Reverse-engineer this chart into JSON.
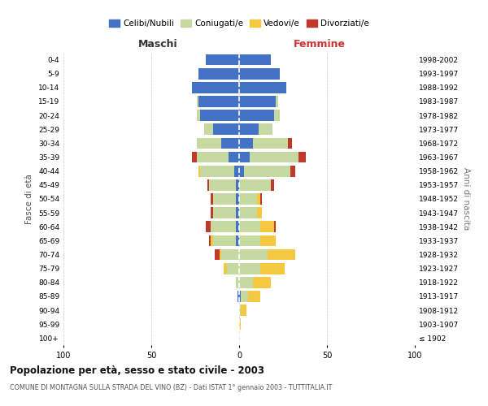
{
  "age_groups": [
    "100+",
    "95-99",
    "90-94",
    "85-89",
    "80-84",
    "75-79",
    "70-74",
    "65-69",
    "60-64",
    "55-59",
    "50-54",
    "45-49",
    "40-44",
    "35-39",
    "30-34",
    "25-29",
    "20-24",
    "15-19",
    "10-14",
    "5-9",
    "0-4"
  ],
  "birth_years": [
    "≤ 1902",
    "1903-1907",
    "1908-1912",
    "1913-1917",
    "1918-1922",
    "1923-1927",
    "1928-1932",
    "1933-1937",
    "1938-1942",
    "1943-1947",
    "1948-1952",
    "1953-1957",
    "1958-1962",
    "1963-1967",
    "1968-1972",
    "1973-1977",
    "1978-1982",
    "1983-1987",
    "1988-1992",
    "1993-1997",
    "1998-2002"
  ],
  "maschi": {
    "celibe": [
      0,
      0,
      0,
      1,
      0,
      0,
      0,
      2,
      2,
      2,
      2,
      2,
      3,
      6,
      10,
      15,
      22,
      23,
      27,
      23,
      19
    ],
    "coniugato": [
      0,
      0,
      0,
      0,
      2,
      7,
      10,
      13,
      14,
      13,
      13,
      15,
      19,
      18,
      14,
      5,
      2,
      1,
      0,
      0,
      0
    ],
    "vedovo": [
      0,
      0,
      0,
      0,
      0,
      2,
      1,
      1,
      0,
      0,
      0,
      0,
      1,
      0,
      0,
      0,
      0,
      0,
      0,
      0,
      0
    ],
    "divorziato": [
      0,
      0,
      0,
      0,
      0,
      0,
      3,
      1,
      3,
      1,
      1,
      1,
      0,
      3,
      0,
      0,
      0,
      0,
      0,
      0,
      0
    ]
  },
  "femmine": {
    "nubile": [
      0,
      0,
      0,
      1,
      0,
      0,
      0,
      0,
      0,
      0,
      0,
      0,
      3,
      6,
      8,
      11,
      20,
      21,
      27,
      23,
      18
    ],
    "coniugata": [
      0,
      0,
      1,
      4,
      8,
      12,
      16,
      12,
      12,
      10,
      10,
      18,
      26,
      28,
      20,
      8,
      3,
      1,
      0,
      0,
      0
    ],
    "vedova": [
      0,
      1,
      3,
      7,
      10,
      14,
      16,
      9,
      8,
      3,
      2,
      0,
      0,
      0,
      0,
      0,
      0,
      0,
      0,
      0,
      0
    ],
    "divorziata": [
      0,
      0,
      0,
      0,
      0,
      0,
      0,
      0,
      1,
      0,
      1,
      2,
      3,
      4,
      2,
      0,
      0,
      0,
      0,
      0,
      0
    ]
  },
  "colors": {
    "celibe": "#4472c4",
    "coniugato": "#c5d9a0",
    "vedovo": "#f5c842",
    "divorziato": "#c0392b"
  },
  "xlim": 100,
  "title": "Popolazione per età, sesso e stato civile - 2003",
  "subtitle": "COMUNE DI MONTAGNA SULLA STRADA DEL VINO (BZ) - Dati ISTAT 1° gennaio 2003 - TUTTITALIA.IT",
  "ylabel": "Fasce di età",
  "ylabel_right": "Anni di nascita",
  "label_maschi": "Maschi",
  "label_femmine": "Femmine",
  "legend_labels": [
    "Celibi/Nubili",
    "Coniugati/e",
    "Vedovi/e",
    "Divorziati/e"
  ],
  "background_color": "#ffffff",
  "grid_color": "#cccccc"
}
